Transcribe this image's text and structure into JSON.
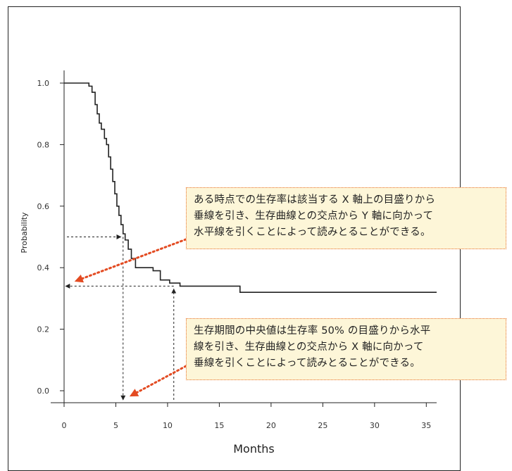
{
  "chart_data": {
    "type": "line",
    "step": true,
    "xlabel": "Months",
    "ylabel": "Probability",
    "xlim": [
      0,
      36
    ],
    "ylim": [
      0.0,
      1.0
    ],
    "x_ticks": [
      0,
      5,
      10,
      15,
      20,
      25,
      30,
      35
    ],
    "y_ticks": [
      "0.0",
      "0.2",
      "0.4",
      "0.6",
      "0.8",
      "1.0"
    ],
    "grid": false,
    "series": [
      {
        "x": [
          0,
          2.4,
          2.7,
          3.0,
          3.2,
          3.4,
          3.6,
          3.9,
          4.1,
          4.3,
          4.5,
          4.7,
          4.9,
          5.1,
          5.3,
          5.5,
          5.7,
          5.9,
          6.2,
          6.5,
          6.9,
          7.4,
          8.6,
          9.3,
          10.2,
          11.2,
          17.0,
          36.0
        ],
        "y": [
          1.0,
          0.99,
          0.97,
          0.93,
          0.9,
          0.87,
          0.85,
          0.82,
          0.8,
          0.76,
          0.72,
          0.68,
          0.64,
          0.6,
          0.57,
          0.54,
          0.51,
          0.49,
          0.46,
          0.43,
          0.4,
          0.4,
          0.39,
          0.36,
          0.35,
          0.34,
          0.32,
          0.32
        ]
      }
    ],
    "guides": {
      "median": {
        "y": 0.5,
        "x": 5.7
      },
      "survival_at_x": {
        "x": 10.6,
        "y": 0.34
      }
    },
    "annotations": [
      {
        "lines": [
          "ある時点での生存率は該当する X 軸上の目盛りから",
          "垂線を引き、生存曲線との交点から Y 軸に向かって",
          "水平線を引くことによって読みとることができる。"
        ]
      },
      {
        "lines": [
          "生存期間の中央値は生存率 50% の目盛りから水平",
          "線を引き、生存曲線との交点から X 軸に向かって",
          "垂線を引くことによって読みとることができる。"
        ]
      }
    ],
    "colors": {
      "curve": "#222222",
      "arrow": "#e34b22",
      "callout_fill": "#fdf6d8",
      "callout_border": "#e8702a"
    }
  }
}
